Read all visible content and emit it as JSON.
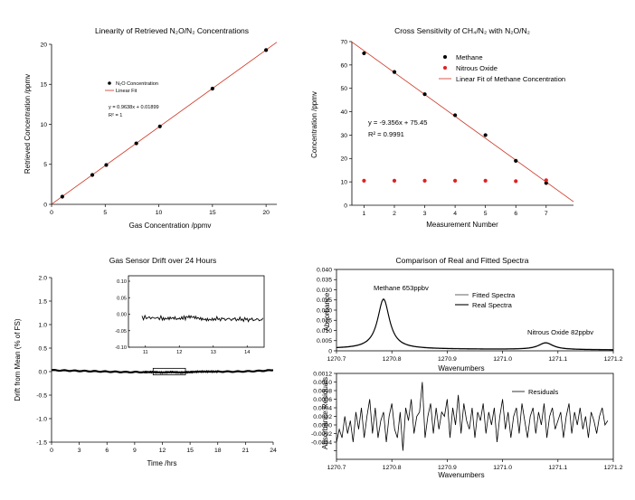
{
  "chart_data": [
    {
      "id": "p1",
      "type": "scatter",
      "title": "Linearity of Retrieved N₂O/N₂ Concentrations",
      "xlabel": "Gas Concentration /ppmv",
      "ylabel": "Retrieved Concentration /ppmv",
      "xlim": [
        0,
        21
      ],
      "ylim": [
        0,
        20
      ],
      "xticks": [
        0,
        5,
        10,
        15,
        20
      ],
      "yticks": [
        0,
        5,
        10,
        15,
        20
      ],
      "series": [
        {
          "name": "N₂O Concentration",
          "kind": "points",
          "color": "#000000",
          "x": [
            1,
            3.8,
            5.1,
            7.9,
            10.1,
            15,
            20
          ],
          "y": [
            0.96,
            3.67,
            4.92,
            7.62,
            9.74,
            14.46,
            19.28
          ]
        },
        {
          "name": "Linear Fit",
          "kind": "line",
          "color": "#cc3322",
          "x": [
            0,
            21
          ],
          "y": [
            0.019,
            20.26
          ]
        }
      ],
      "legend": [
        "N₂O Concentration",
        "Linear Fit"
      ],
      "annotations": [
        "y = 0.9638x + 0.01899",
        "R² = 1"
      ]
    },
    {
      "id": "p2",
      "type": "scatter",
      "title": "Cross Sensitivity of CH₄/N₂ with N₂O/N₂",
      "xlabel": "Measurement Number",
      "ylabel": "Concentration /ppmv",
      "xlim": [
        0.6,
        7.9
      ],
      "ylim": [
        0,
        70
      ],
      "xticks": [
        1,
        2,
        3,
        4,
        5,
        6,
        7
      ],
      "yticks": [
        0,
        10,
        20,
        30,
        40,
        50,
        60,
        70
      ],
      "series": [
        {
          "name": "Methane",
          "kind": "points",
          "color": "#000000",
          "x": [
            1,
            2,
            3,
            4,
            5,
            6,
            7
          ],
          "y": [
            65,
            57,
            47.5,
            38.5,
            30,
            19,
            9.5
          ]
        },
        {
          "name": "Nitrous Oxide",
          "kind": "points",
          "color": "#dd2222",
          "x": [
            1,
            2,
            3,
            4,
            5,
            6,
            7
          ],
          "y": [
            10.5,
            10.5,
            10.5,
            10.5,
            10.5,
            10.3,
            10.7
          ]
        },
        {
          "name": "Linear Fit of Methane Concentration",
          "kind": "line",
          "color": "#cc3322",
          "x": [
            0.6,
            7.9
          ],
          "y": [
            69.84,
            1.53
          ]
        }
      ],
      "legend": [
        "Methane",
        "Nitrous Oxide",
        "Linear Fit of Methane Concentration"
      ],
      "annotations": [
        "y = -9.356x + 75.45",
        "R² = 0.9991"
      ]
    },
    {
      "id": "p3",
      "type": "line",
      "title": "Gas Sensor Drift over 24 Hours",
      "xlabel": "Time /hrs",
      "ylabel": "Drift from Mean (% of FS)",
      "xlim": [
        0,
        24
      ],
      "ylim": [
        -1.5,
        2.0
      ],
      "xticks": [
        0,
        3,
        6,
        9,
        12,
        15,
        18,
        21,
        24
      ],
      "yticks": [
        -1.5,
        -1.0,
        -0.5,
        0.0,
        0.5,
        1.0,
        1.5,
        2.0
      ],
      "series": [
        {
          "name": "Drift",
          "kind": "line",
          "color": "#000000",
          "x": [
            0,
            2,
            4,
            6,
            8,
            10,
            11,
            12,
            13,
            14,
            15,
            16,
            17,
            18,
            20,
            22,
            24
          ],
          "y": [
            0.03,
            0.02,
            0.01,
            0.0,
            -0.01,
            -0.01,
            -0.01,
            -0.02,
            -0.01,
            -0.02,
            -0.01,
            0.0,
            0.0,
            0.0,
            0.0,
            0.01,
            0.03
          ]
        }
      ],
      "inset": {
        "xlim": [
          10.9,
          14.5
        ],
        "ylim": [
          -0.1,
          0.1
        ],
        "xticks": [
          11,
          12,
          13,
          14
        ],
        "yticks": [
          -0.1,
          -0.05,
          0.0,
          0.05,
          0.1
        ],
        "series": [
          {
            "name": "Drift (zoom)",
            "kind": "line",
            "color": "#000000",
            "x": [
              10.9,
              11.5,
              11.9,
              12.2,
              12.6,
              13.0,
              13.5,
              14.0,
              14.5
            ],
            "y": [
              -0.01,
              -0.012,
              -0.015,
              -0.01,
              -0.013,
              -0.014,
              -0.015,
              -0.016,
              -0.017
            ]
          }
        ]
      },
      "zoom_region": {
        "xlim": [
          11,
          14.5
        ],
        "ylim": [
          -0.07,
          0.07
        ]
      }
    },
    {
      "id": "p4",
      "type": "line",
      "title": "Comparison of Real and Fitted Spectra",
      "xlabel": "Wavenumbers",
      "ylabel": "Absorbance",
      "xlim": [
        1270.7,
        1271.2
      ],
      "ylim": [
        0,
        0.04
      ],
      "xticks": [
        1270.7,
        1270.8,
        1270.9,
        1271.0,
        1271.1,
        1271.2
      ],
      "xticklabels": [
        "1270.7",
        "1270.8",
        "1270.9",
        "1271.0",
        "1271.1",
        "1271.2"
      ],
      "yticks": [
        0,
        0.005,
        0.01,
        0.015,
        0.02,
        0.025,
        0.03,
        0.035,
        0.04
      ],
      "yticklabels": [
        "0",
        "0.005",
        "0.010",
        "0.015",
        "0.020",
        "0.025",
        "0.030",
        "0.035",
        "0.040"
      ],
      "series": [
        {
          "name": "Fitted Spectra",
          "kind": "line",
          "color": "#555555",
          "peaks": [
            {
              "center": 1270.785,
              "height": 0.0245,
              "width": 0.013
            },
            {
              "center": 1271.078,
              "height": 0.0033,
              "width": 0.016
            }
          ],
          "baseline": 0.001
        },
        {
          "name": "Real Spectra",
          "kind": "line",
          "color": "#000000",
          "peaks": [
            {
              "center": 1270.785,
              "height": 0.0245,
              "width": 0.013
            },
            {
              "center": 1271.078,
              "height": 0.0033,
              "width": 0.016
            }
          ],
          "baseline": 0.001
        }
      ],
      "legend": [
        "Fitted Spectra",
        "Real Spectra"
      ],
      "annotations": [
        "Methane 653ppbv",
        "Nitrous Oxide 82ppbv"
      ]
    },
    {
      "id": "p5",
      "type": "line",
      "title": "",
      "xlabel": "Wavenumbers",
      "ylabel": "Absorbance Residuals",
      "xlim": [
        1270.7,
        1271.2
      ],
      "ylim": [
        -0.0008,
        0.0012
      ],
      "xticks": [
        1270.7,
        1270.8,
        1270.9,
        1271.0,
        1271.1,
        1271.2
      ],
      "xticklabels": [
        "1270.7",
        "1270.8",
        "1270.9",
        "1271.0",
        "1271.1",
        "1271.2"
      ],
      "yticks": [
        -0.0006,
        -0.0004,
        -0.0002,
        0.0,
        0.0002,
        0.0004,
        0.0006,
        0.0008,
        0.001,
        0.0012
      ],
      "yticklabels": [
        "",
        "-0.0004",
        "-0.0002",
        "0.0000",
        "0.0002",
        "0.0004",
        "0.0006",
        "0.0008",
        "0.0010",
        "0.0012"
      ],
      "series": [
        {
          "name": "Residuals",
          "kind": "line",
          "color": "#000000",
          "x": [
            1270.7,
            1270.705,
            1270.71,
            1270.715,
            1270.72,
            1270.725,
            1270.73,
            1270.735,
            1270.74,
            1270.745,
            1270.75,
            1270.755,
            1270.76,
            1270.765,
            1270.77,
            1270.775,
            1270.78,
            1270.785,
            1270.79,
            1270.795,
            1270.8,
            1270.805,
            1270.81,
            1270.815,
            1270.82,
            1270.825,
            1270.83,
            1270.835,
            1270.84,
            1270.845,
            1270.85,
            1270.855,
            1270.86,
            1270.865,
            1270.87,
            1270.875,
            1270.88,
            1270.885,
            1270.89,
            1270.895,
            1270.9,
            1270.905,
            1270.91,
            1270.915,
            1270.92,
            1270.925,
            1270.93,
            1270.935,
            1270.94,
            1270.945,
            1270.95,
            1270.955,
            1270.96,
            1270.965,
            1270.97,
            1270.975,
            1270.98,
            1270.985,
            1270.99,
            1270.995,
            1271.0,
            1271.005,
            1271.01,
            1271.015,
            1271.02,
            1271.025,
            1271.03,
            1271.035,
            1271.04,
            1271.045,
            1271.05,
            1271.055,
            1271.06,
            1271.065,
            1271.07,
            1271.075,
            1271.08,
            1271.085,
            1271.09,
            1271.095,
            1271.1,
            1271.105,
            1271.11,
            1271.115,
            1271.12,
            1271.125,
            1271.13,
            1271.135,
            1271.14,
            1271.145,
            1271.15,
            1271.155,
            1271.16,
            1271.165,
            1271.17,
            1271.175,
            1271.18,
            1271.185,
            1271.19
          ],
          "y": [
            -0.0004,
            -0.0001,
            -0.0003,
            0.0002,
            -0.0002,
            0.0001,
            -0.0004,
            0.0003,
            -0.0001,
            0.0004,
            -0.0003,
            0.0002,
            0.0006,
            -0.0002,
            0.0004,
            -0.0003,
            0.0001,
            0.0003,
            -0.0004,
            0.0002,
            0.0005,
            -0.0001,
            -0.0003,
            0.0003,
            -0.0006,
            0.0004,
            0.0001,
            0.0006,
            -0.0002,
            0.0002,
            0.0003,
            0.001,
            -0.0003,
            0.0002,
            0.0005,
            -0.0002,
            0.0004,
            -0.0001,
            0.0003,
            0.0002,
            0.0006,
            -0.0003,
            0.0004,
            0.0,
            0.0007,
            -0.0002,
            0.0005,
            0.0001,
            -0.0001,
            0.0004,
            -0.0003,
            0.0003,
            0.0001,
            0.0005,
            -0.0002,
            0.0003,
            0.0,
            0.0004,
            -0.0004,
            0.0002,
            0.0006,
            -0.0001,
            0.0003,
            -0.0003,
            0.0002,
            0.0004,
            -0.0002,
            0.0005,
            0.0001,
            -0.0003,
            0.0002,
            0.0004,
            -0.0002,
            0.0003,
            0.0,
            0.0005,
            -0.0003,
            0.0002,
            0.0004,
            -0.0001,
            0.0001,
            0.0003,
            -0.0003,
            0.0002,
            0.0005,
            -0.0002,
            0.0003,
            0.0,
            0.0004,
            -0.0001,
            0.0002,
            -0.0003,
            0.0003,
            0.0001,
            -0.0002,
            0.0002,
            0.0004,
            0.0,
            0.0001
          ]
        }
      ],
      "legend": [
        "Residuals"
      ]
    }
  ]
}
